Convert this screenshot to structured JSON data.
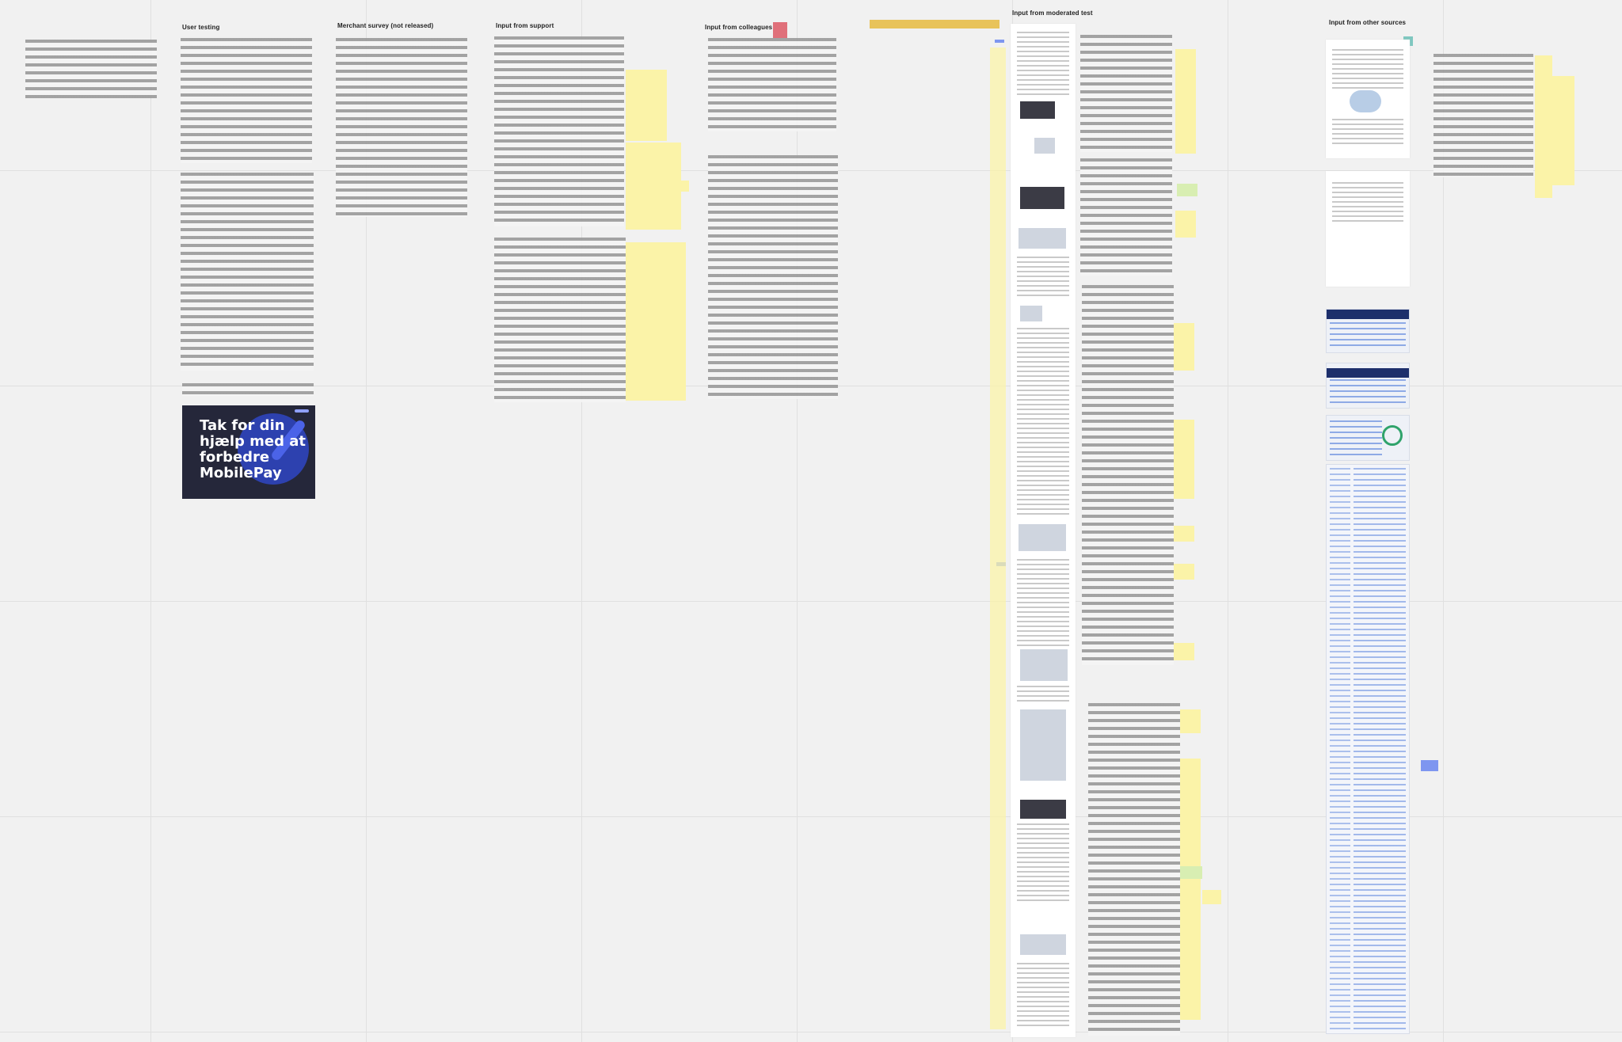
{
  "board": {
    "columns": [
      {
        "id": "user-testing",
        "heading": "User testing"
      },
      {
        "id": "merchant-survey",
        "heading": "Merchant survey (not released)"
      },
      {
        "id": "support",
        "heading": "Input from support"
      },
      {
        "id": "colleagues",
        "heading": "Input from colleagues"
      },
      {
        "id": "moderated-test",
        "heading": "Input from moderated test"
      },
      {
        "id": "other-sources",
        "heading": "Input from other sources"
      }
    ],
    "promo_card": {
      "text": "Tak for din\nhjælp med at\nforbedre\nMobilePay"
    },
    "colors": {
      "sticky_yellow": "#fbf3a8",
      "sticky_green": "#d8eeb2",
      "sticky_blue": "#7e96f0",
      "sticky_red": "#e0707a",
      "sticky_teal": "#7fc7c0",
      "promo_background": "#25273a",
      "promo_accent": "#2f46c4"
    }
  }
}
